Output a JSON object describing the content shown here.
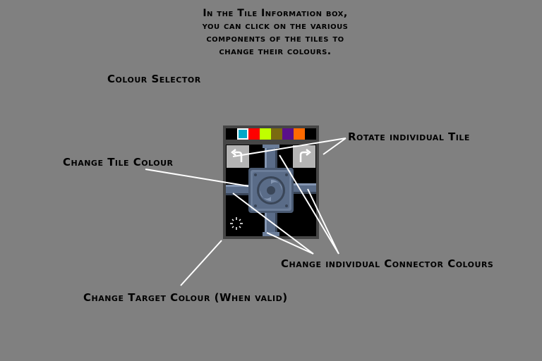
{
  "intro": {
    "line1": "In the Tile Information box,",
    "line2": "you can click on the various",
    "line3": "components of the tiles to",
    "line4": "change their colours."
  },
  "labels": {
    "colour_selector": "Colour Selector",
    "rotate_tile": "Rotate individual Tile",
    "change_tile_colour": "Change Tile Colour",
    "change_connector_colours": "Change individual Connector Colours",
    "change_target_colour": "Change Target Colour (When valid)"
  },
  "palette": {
    "colors": [
      "#000000",
      "#00a8c8",
      "#ff0000",
      "#c0ff00",
      "#7a6a10",
      "#5a108a",
      "#ff6a00",
      "#000000"
    ],
    "selected_index": 1
  },
  "icons": {
    "rotate_left": "rotate-counterclockwise-icon",
    "rotate_right": "rotate-clockwise-icon",
    "target": "target-sparkle-icon"
  },
  "colors": {
    "background": "#808080",
    "panel": "#464646",
    "tile_body": "#5a6c88",
    "tile_light": "#8496b2",
    "tile_dark": "#3a4658",
    "button": "#b4b4b4",
    "callout_line": "#ffffff"
  }
}
